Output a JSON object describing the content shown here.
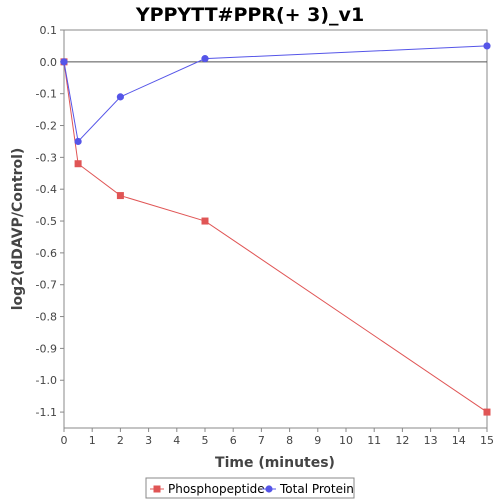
{
  "chart_data": {
    "type": "line",
    "title": "YPPYTT#PPR(+ 3)_v1",
    "xlabel": "Time (minutes)",
    "ylabel": "log2(dDAVP/Control)",
    "xlim": [
      0,
      15
    ],
    "ylim": [
      -1.15,
      0.1
    ],
    "x_ticks": [
      0,
      1,
      2,
      3,
      4,
      5,
      6,
      7,
      8,
      9,
      10,
      11,
      12,
      13,
      14,
      15
    ],
    "y_ticks": [
      0.1,
      0.0,
      -0.1,
      -0.2,
      -0.3,
      -0.4,
      -0.5,
      -0.6,
      -0.7,
      -0.8,
      -0.9,
      -1.0,
      -1.1
    ],
    "y_tick_labels": [
      "0.1",
      "0.0",
      "-0.1",
      "-0.2",
      "-0.3",
      "-0.4",
      "-0.5",
      "-0.6",
      "-0.7",
      "-0.8",
      "-0.9",
      "-1.0",
      "-1.1"
    ],
    "zero_line": true,
    "grid": false,
    "legend_position": "bottom",
    "series": [
      {
        "name": "Phosphopeptide",
        "color": "#e05555",
        "marker": "square",
        "x": [
          0,
          0.5,
          2,
          5,
          15
        ],
        "y": [
          0.0,
          -0.32,
          -0.42,
          -0.5,
          -1.1
        ]
      },
      {
        "name": "Total Protein",
        "color": "#5555e8",
        "marker": "circle",
        "x": [
          0,
          0.5,
          2,
          5,
          15
        ],
        "y": [
          0.0,
          -0.25,
          -0.11,
          0.01,
          0.05
        ]
      }
    ]
  }
}
